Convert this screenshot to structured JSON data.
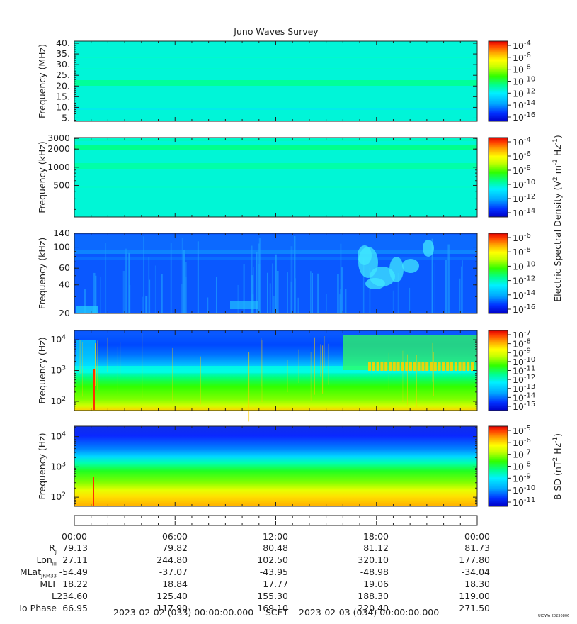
{
  "title": "Juno Waves Survey",
  "colors": {
    "bg": "#00fae0",
    "scale": [
      "#0000d0",
      "#0a40ff",
      "#00a0ff",
      "#00e8ff",
      "#00ff80",
      "#40ff00",
      "#c8ff00",
      "#ffff00",
      "#ffb000",
      "#ff5000",
      "#e80000"
    ]
  },
  "panels": [
    {
      "id": "p1",
      "ylabel": "Frequency (MHz)",
      "yscale": "linear",
      "yrange": [
        3.5,
        41
      ],
      "yticks": [
        "5.",
        "10.",
        "15.",
        "20.",
        "25.",
        "30.",
        "35.",
        "40."
      ],
      "ytick_values": [
        5,
        10,
        15,
        20,
        25,
        30,
        35,
        40
      ],
      "cb_labels": [
        "10-4",
        "10-6",
        "10-8",
        "10-10",
        "10-12",
        "10-14",
        "10-16"
      ],
      "cb_exps": [
        "-4",
        "-6",
        "-8",
        "-10",
        "-12",
        "-14",
        "-16"
      ]
    },
    {
      "id": "p2",
      "ylabel": "Frequency (kHz)",
      "yscale": "log",
      "yrange": [
        150,
        3100
      ],
      "yticks": [
        "500",
        "1000",
        "2000",
        "3000"
      ],
      "ytick_values": [
        500,
        1000,
        2000,
        3000
      ],
      "cb_exps": [
        "-4",
        "-6",
        "-8",
        "-10",
        "-12",
        "-14"
      ]
    },
    {
      "id": "p3",
      "ylabel": "Frequency (kHz)",
      "yscale": "log",
      "yrange": [
        20,
        140
      ],
      "yticks": [
        "20",
        "40",
        "60",
        "100",
        "140"
      ],
      "ytick_values": [
        20,
        40,
        60,
        100,
        140
      ],
      "cb_exps": [
        "-6",
        "-8",
        "-10",
        "-12",
        "-14",
        "-16"
      ]
    },
    {
      "id": "p4",
      "ylabel": "Frequency (Hz)",
      "yscale": "log",
      "yrange": [
        50,
        20000
      ],
      "yticks": [
        "10",
        "10",
        "10"
      ],
      "ytick_exps": [
        "2",
        "3",
        "4"
      ],
      "ytick_values": [
        100,
        1000,
        10000
      ],
      "cb_exps": [
        "-7",
        "-8",
        "-9",
        "-10",
        "-11",
        "-12",
        "-13",
        "-14",
        "-15"
      ]
    },
    {
      "id": "p5",
      "ylabel": "Frequency (Hz)",
      "yscale": "log",
      "yrange": [
        50,
        22000
      ],
      "yticks": [
        "10",
        "10",
        "10"
      ],
      "ytick_exps": [
        "2",
        "3",
        "4"
      ],
      "ytick_values": [
        100,
        1000,
        10000
      ],
      "cb_exps": [
        "-5",
        "-6",
        "-7",
        "-8",
        "-9",
        "-10",
        "-11"
      ]
    }
  ],
  "colorbar_titles": {
    "electric": "Electric Spectral Density (V",
    "electric_sup1": "2",
    "electric_mid": " m",
    "electric_sup2": "-2",
    "electric_mid2": " Hz",
    "electric_sup3": "-1",
    "electric_end": ")",
    "magnetic": "B SD (nT",
    "magnetic_sup1": "2",
    "magnetic_mid": " Hz",
    "magnetic_sup2": "-1",
    "magnetic_end": ")"
  },
  "chart_data": {
    "type": "heatmap",
    "title": "Juno Waves Survey",
    "x_start": "2023-02-02 (033) 00:00:00.000",
    "x_end": "2023-02-03 (034) 00:00:00.000",
    "x_ticks": [
      "00:00",
      "06:00",
      "12:00",
      "18:00",
      "00:00"
    ],
    "ephemeris_rows": [
      {
        "label": "R",
        "sub": "J",
        "values": [
          "79.13",
          "79.82",
          "80.48",
          "81.12",
          "81.73"
        ]
      },
      {
        "label": "Lon",
        "sub": "III",
        "values": [
          "27.11",
          "244.80",
          "102.50",
          "320.10",
          "177.80"
        ]
      },
      {
        "label": "MLat",
        "sub": "JRM33",
        "values": [
          "-54.49",
          "-37.07",
          "-43.95",
          "-48.98",
          "-34.04"
        ]
      },
      {
        "label": "MLT",
        "sub": "",
        "values": [
          "18.22",
          "18.84",
          "17.77",
          "19.06",
          "18.30"
        ]
      },
      {
        "label": "L",
        "sub": "",
        "values": [
          "234.60",
          "125.40",
          "155.30",
          "188.30",
          "119.00"
        ]
      },
      {
        "label": "Io Phase",
        "sub": "",
        "values": [
          "66.95",
          "117.90",
          "169.10",
          "220.40",
          "271.50"
        ]
      }
    ]
  },
  "footer": {
    "start": "2023-02-02 (033) 00:00:00.000",
    "scet": "SCET",
    "end": "2023-02-03 (034) 00:00:00.000",
    "stamp": "UIOWA 20230806"
  }
}
